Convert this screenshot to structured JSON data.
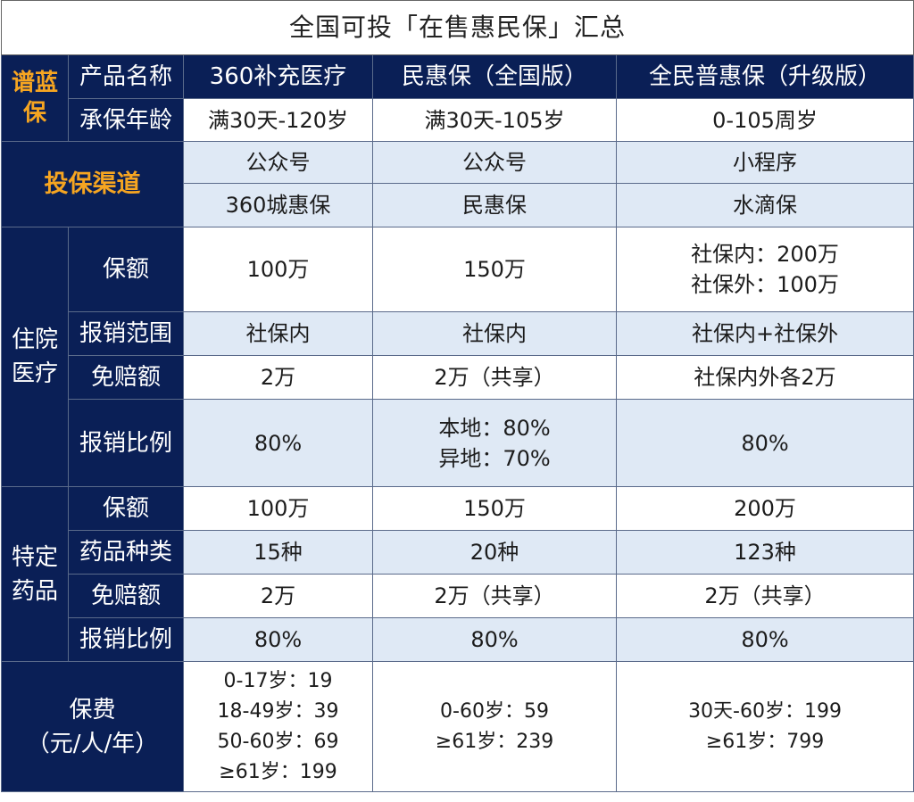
{
  "title": "全国可投「在售惠民保」汇总",
  "brand": {
    "line1": "谱蓝",
    "line2": "保"
  },
  "header": {
    "product_name_label": "产品名称",
    "age_label": "承保年龄",
    "products": [
      "360补充医疗",
      "民惠保（全国版）",
      "全民普惠保（升级版）"
    ],
    "ages": [
      "满30天-120岁",
      "满30天-105岁",
      "0-105周岁"
    ]
  },
  "channel": {
    "label": "投保渠道",
    "types": [
      "公众号",
      "公众号",
      "小程序"
    ],
    "names": [
      "360城惠保",
      "民惠保",
      "水滴保"
    ]
  },
  "hospital": {
    "category_line1": "住院",
    "category_line2": "医疗",
    "coverage_label": "保额",
    "coverage": [
      [
        "100万"
      ],
      [
        "150万"
      ],
      [
        "社保内：200万",
        "社保外：100万"
      ]
    ],
    "scope_label": "报销范围",
    "scope": [
      "社保内",
      "社保内",
      "社保内+社保外"
    ],
    "deductible_label": "免赔额",
    "deductible": [
      "2万",
      "2万（共享）",
      "社保内外各2万"
    ],
    "ratio_label": "报销比例",
    "ratio": [
      [
        "80%"
      ],
      [
        "本地：80%",
        "异地：70%"
      ],
      [
        "80%"
      ]
    ]
  },
  "drugs": {
    "category_line1": "特定",
    "category_line2": "药品",
    "coverage_label": "保额",
    "coverage": [
      "100万",
      "150万",
      "200万"
    ],
    "types_label": "药品种类",
    "types": [
      "15种",
      "20种",
      "123种"
    ],
    "deductible_label": "免赔额",
    "deductible": [
      "2万",
      "2万（共享）",
      "2万（共享）"
    ],
    "ratio_label": "报销比例",
    "ratio": [
      "80%",
      "80%",
      "80%"
    ]
  },
  "premium": {
    "label_line1": "保费",
    "label_line2": "（元/人/年）",
    "values": [
      [
        "0-17岁：19",
        "18-49岁：39",
        "50-60岁：69",
        "≥61岁：199"
      ],
      [
        "0-60岁：59",
        "≥61岁：239"
      ],
      [
        "30天-60岁：199",
        "≥61岁：799"
      ]
    ]
  },
  "colors": {
    "navy": "#0a1f56",
    "orange": "#f6a521",
    "light_blue": "#dfe9f5"
  }
}
